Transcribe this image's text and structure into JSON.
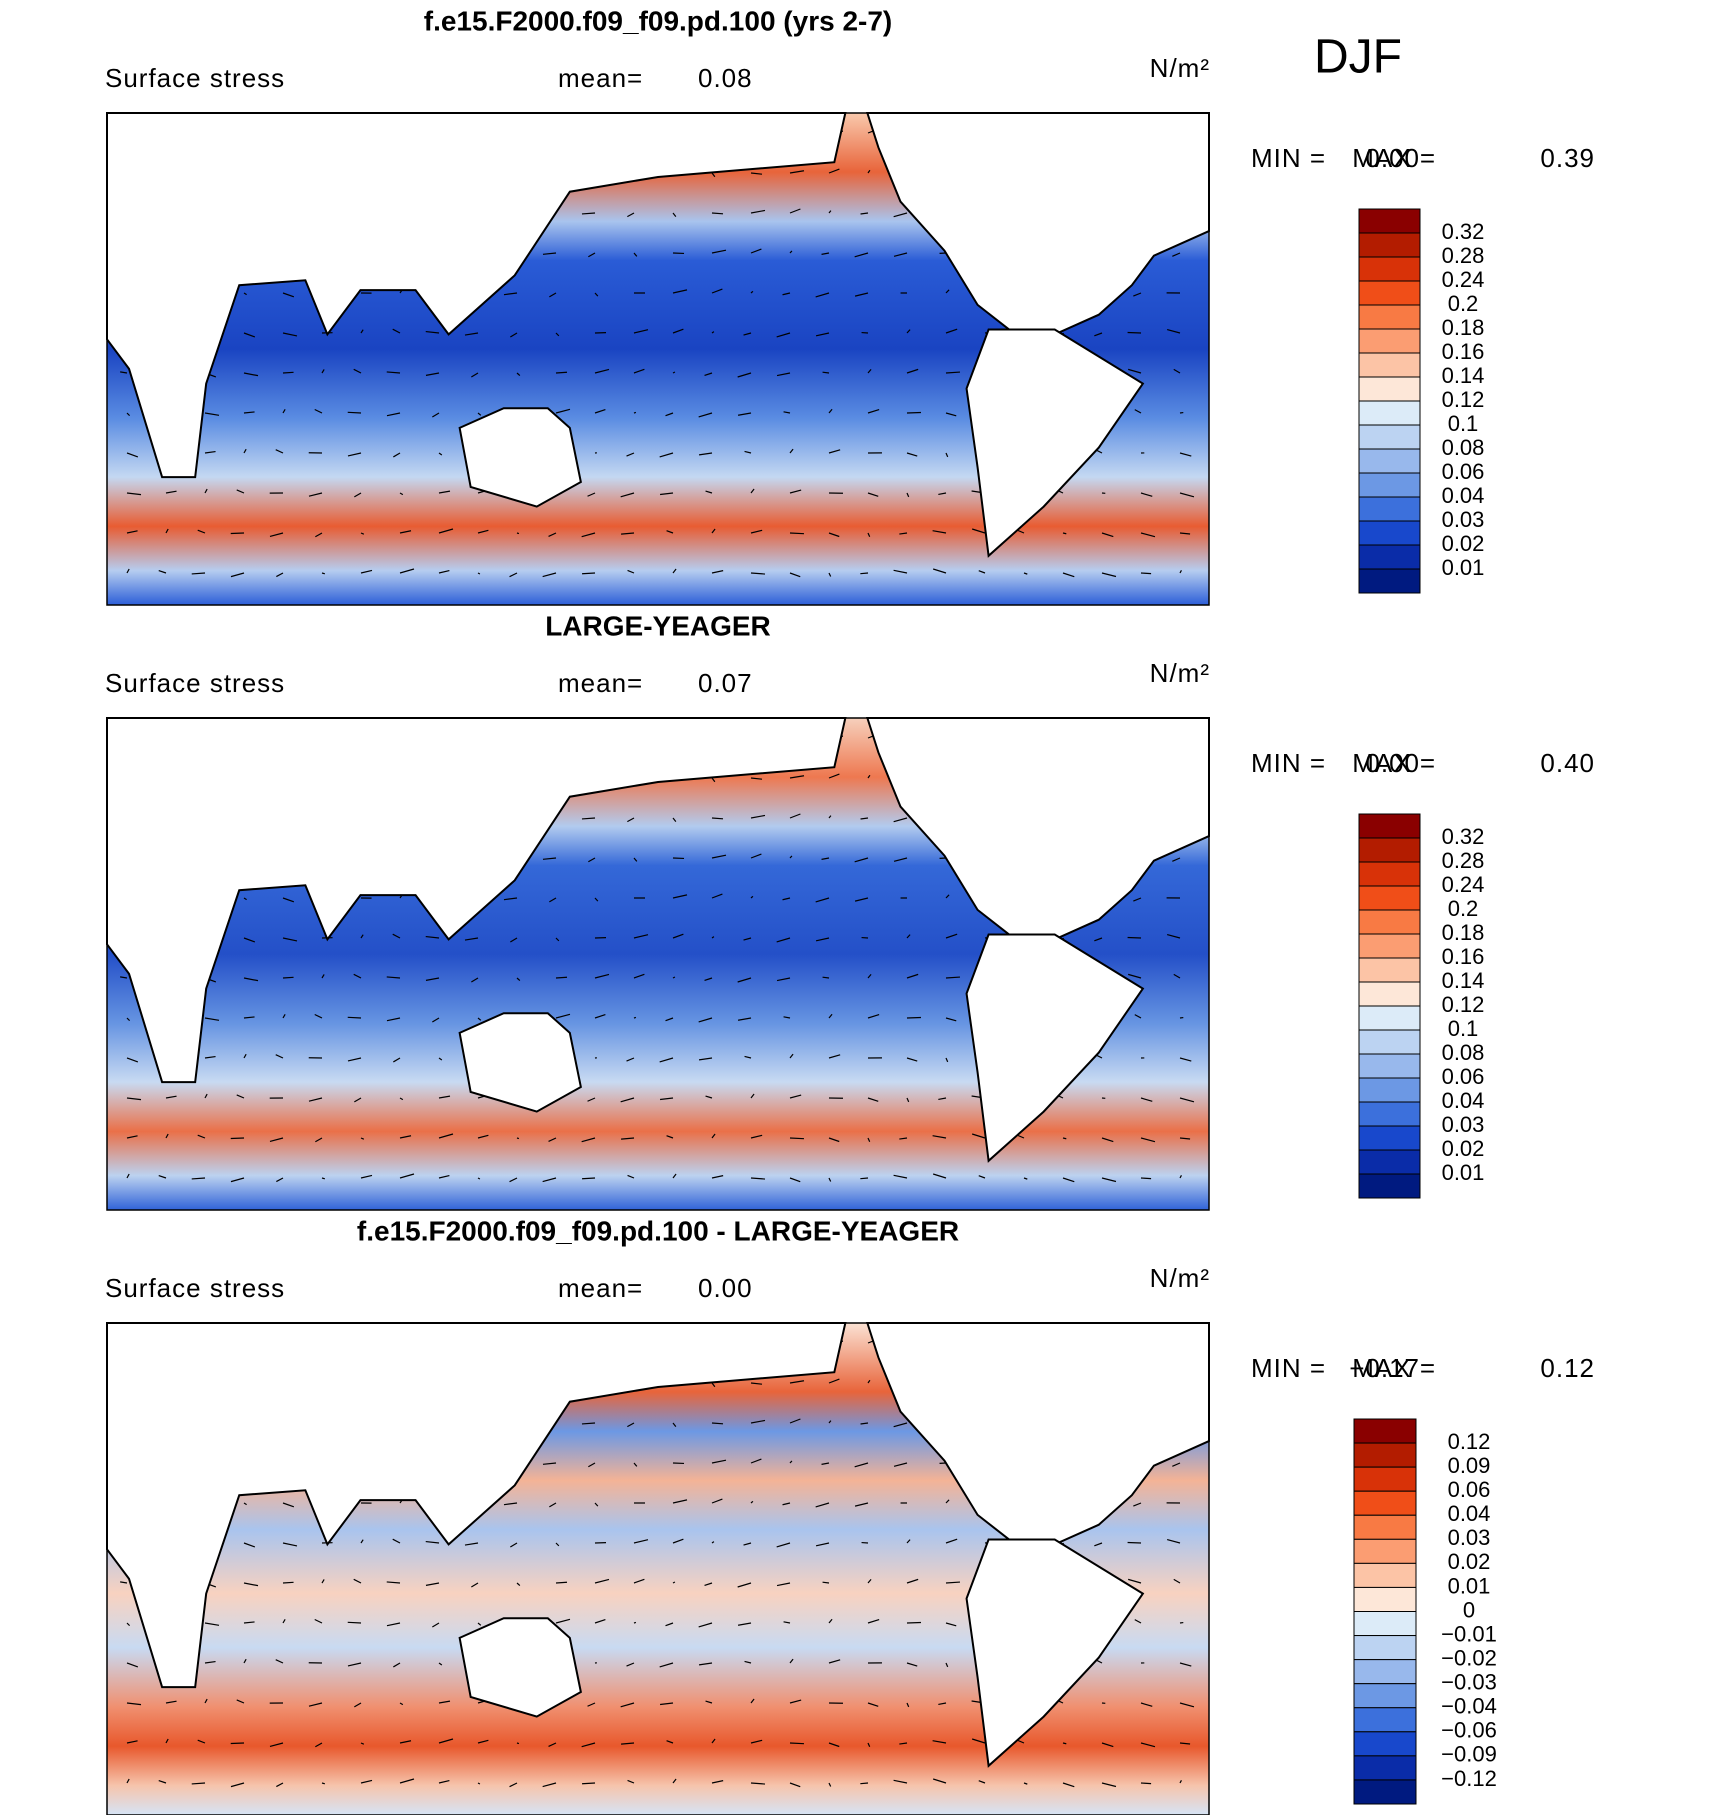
{
  "season": "DJF",
  "panels": [
    {
      "title": "f.e15.F2000.f09_f09.pd.100 (yrs 2-7)",
      "variable": "Surface stress",
      "mean_label": "mean=",
      "mean": "0.08",
      "units": "N/m²",
      "min_label": "MIN =",
      "min": "0.00",
      "max_label": "MAX =",
      "max": "0.39",
      "colorbar": {
        "labels": [
          "0.32",
          "0.28",
          "0.24",
          "0.2",
          "0.18",
          "0.16",
          "0.14",
          "0.12",
          "0.1",
          "0.08",
          "0.06",
          "0.04",
          "0.03",
          "0.02",
          "0.01"
        ],
        "colors": [
          "#8a0000",
          "#b31c00",
          "#d83208",
          "#f04e18",
          "#f87a44",
          "#fb9d72",
          "#fcc4a6",
          "#fde7d8",
          "#dcebf8",
          "#bcd3f2",
          "#98b8ec",
          "#6c98e4",
          "#3c70dc",
          "#1848cc",
          "#0a2ca8",
          "#001a80"
        ]
      }
    },
    {
      "title": "LARGE-YEAGER",
      "variable": "Surface stress",
      "mean_label": "mean=",
      "mean": "0.07",
      "units": "N/m²",
      "min_label": "MIN =",
      "min": "0.00",
      "max_label": "MAX =",
      "max": "0.40",
      "colorbar": {
        "labels": [
          "0.32",
          "0.28",
          "0.24",
          "0.2",
          "0.18",
          "0.16",
          "0.14",
          "0.12",
          "0.1",
          "0.08",
          "0.06",
          "0.04",
          "0.03",
          "0.02",
          "0.01"
        ],
        "colors": [
          "#8a0000",
          "#b31c00",
          "#d83208",
          "#f04e18",
          "#f87a44",
          "#fb9d72",
          "#fcc4a6",
          "#fde7d8",
          "#dcebf8",
          "#bcd3f2",
          "#98b8ec",
          "#6c98e4",
          "#3c70dc",
          "#1848cc",
          "#0a2ca8",
          "#001a80"
        ]
      }
    },
    {
      "title": "f.e15.F2000.f09_f09.pd.100 - LARGE-YEAGER",
      "variable": "Surface stress",
      "mean_label": "mean=",
      "mean": "0.00",
      "units": "N/m²",
      "min_label": "MIN =",
      "min": "−0.17",
      "max_label": "MAX =",
      "max": "0.12",
      "colorbar": {
        "labels": [
          "0.12",
          "0.09",
          "0.06",
          "0.04",
          "0.03",
          "0.02",
          "0.01",
          "0",
          "−0.01",
          "−0.02",
          "−0.03",
          "−0.04",
          "−0.06",
          "−0.09",
          "−0.12"
        ],
        "colors": [
          "#8a0000",
          "#b31c00",
          "#d83208",
          "#f04e18",
          "#f87a44",
          "#fb9d72",
          "#fcc4a6",
          "#fde7d8",
          "#dcebf8",
          "#bcd3f2",
          "#98b8ec",
          "#6c98e4",
          "#3c70dc",
          "#1848cc",
          "#0a2ca8",
          "#001a80"
        ]
      }
    }
  ]
}
